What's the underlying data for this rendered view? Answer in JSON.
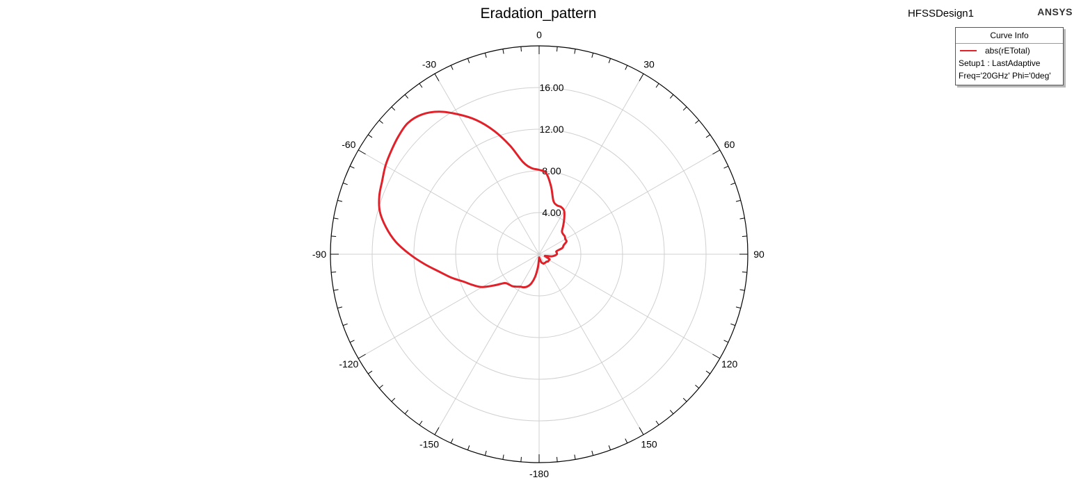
{
  "header": {
    "title": "Eradation_pattern",
    "design_name": "HFSSDesign1",
    "brand": "ANSYS"
  },
  "legend": {
    "heading": "Curve Info",
    "curve_name": "abs(rETotal)",
    "setup": "Setup1 : LastAdaptive",
    "sweep": "Freq='20GHz' Phi='0deg'"
  },
  "colors": {
    "curve": "#e0212a",
    "grid": "#d0d0d0",
    "axis": "#000000"
  },
  "chart_data": {
    "type": "line",
    "coordinate_system": "polar",
    "title": "Eradation_pattern",
    "theta_unit": "deg",
    "theta_zero": "top",
    "theta_direction": "clockwise",
    "angle_labels": [
      "0",
      "30",
      "60",
      "90",
      "120",
      "150",
      "-180",
      "-150",
      "-120",
      "-90",
      "-60",
      "-30"
    ],
    "radial_labels": [
      "4.00",
      "8.00",
      "12.00",
      "16.00"
    ],
    "r_range": [
      0,
      20
    ],
    "grid": true,
    "legend_position": "top-right",
    "series": [
      {
        "name": "abs(rETotal)",
        "color": "#e0212a",
        "theta": [
          -180,
          -175,
          -170,
          -165,
          -160,
          -155,
          -150,
          -145,
          -140,
          -135,
          -130,
          -125,
          -120,
          -115,
          -110,
          -105,
          -100,
          -95,
          -90,
          -85,
          -80,
          -75,
          -70,
          -65,
          -60,
          -55,
          -50,
          -45,
          -40,
          -35,
          -30,
          -25,
          -20,
          -15,
          -10,
          -5,
          0,
          5,
          10,
          15,
          20,
          25,
          30,
          35,
          40,
          45,
          50,
          55,
          60,
          65,
          70,
          75,
          80,
          85,
          90,
          95,
          100,
          105,
          110,
          115,
          120,
          125,
          130,
          135,
          140,
          145,
          150,
          155,
          160,
          165,
          170,
          175,
          180
        ],
        "r": [
          0.3,
          1.2,
          2.2,
          2.9,
          3.3,
          3.5,
          3.6,
          3.8,
          4.0,
          4.1,
          4.3,
          5.2,
          6.3,
          7.0,
          7.7,
          8.7,
          9.7,
          11.0,
          12.4,
          13.8,
          14.9,
          15.8,
          16.3,
          16.6,
          17.0,
          17.3,
          17.6,
          17.8,
          17.5,
          16.7,
          15.5,
          14.2,
          12.6,
          10.8,
          9.0,
          8.3,
          8.1,
          7.8,
          6.6,
          5.3,
          5.0,
          5.0,
          4.8,
          4.2,
          3.6,
          3.1,
          3.0,
          3.0,
          2.9,
          2.9,
          2.5,
          2.3,
          1.7,
          1.7,
          1.7,
          1.5,
          1.2,
          0.6,
          0.7,
          1.1,
          1.1,
          1.1,
          1.1,
          1.0,
          1.0,
          1.0,
          1.0,
          1.0,
          0.9,
          0.8,
          0.5,
          0.4,
          0.3
        ]
      }
    ]
  }
}
